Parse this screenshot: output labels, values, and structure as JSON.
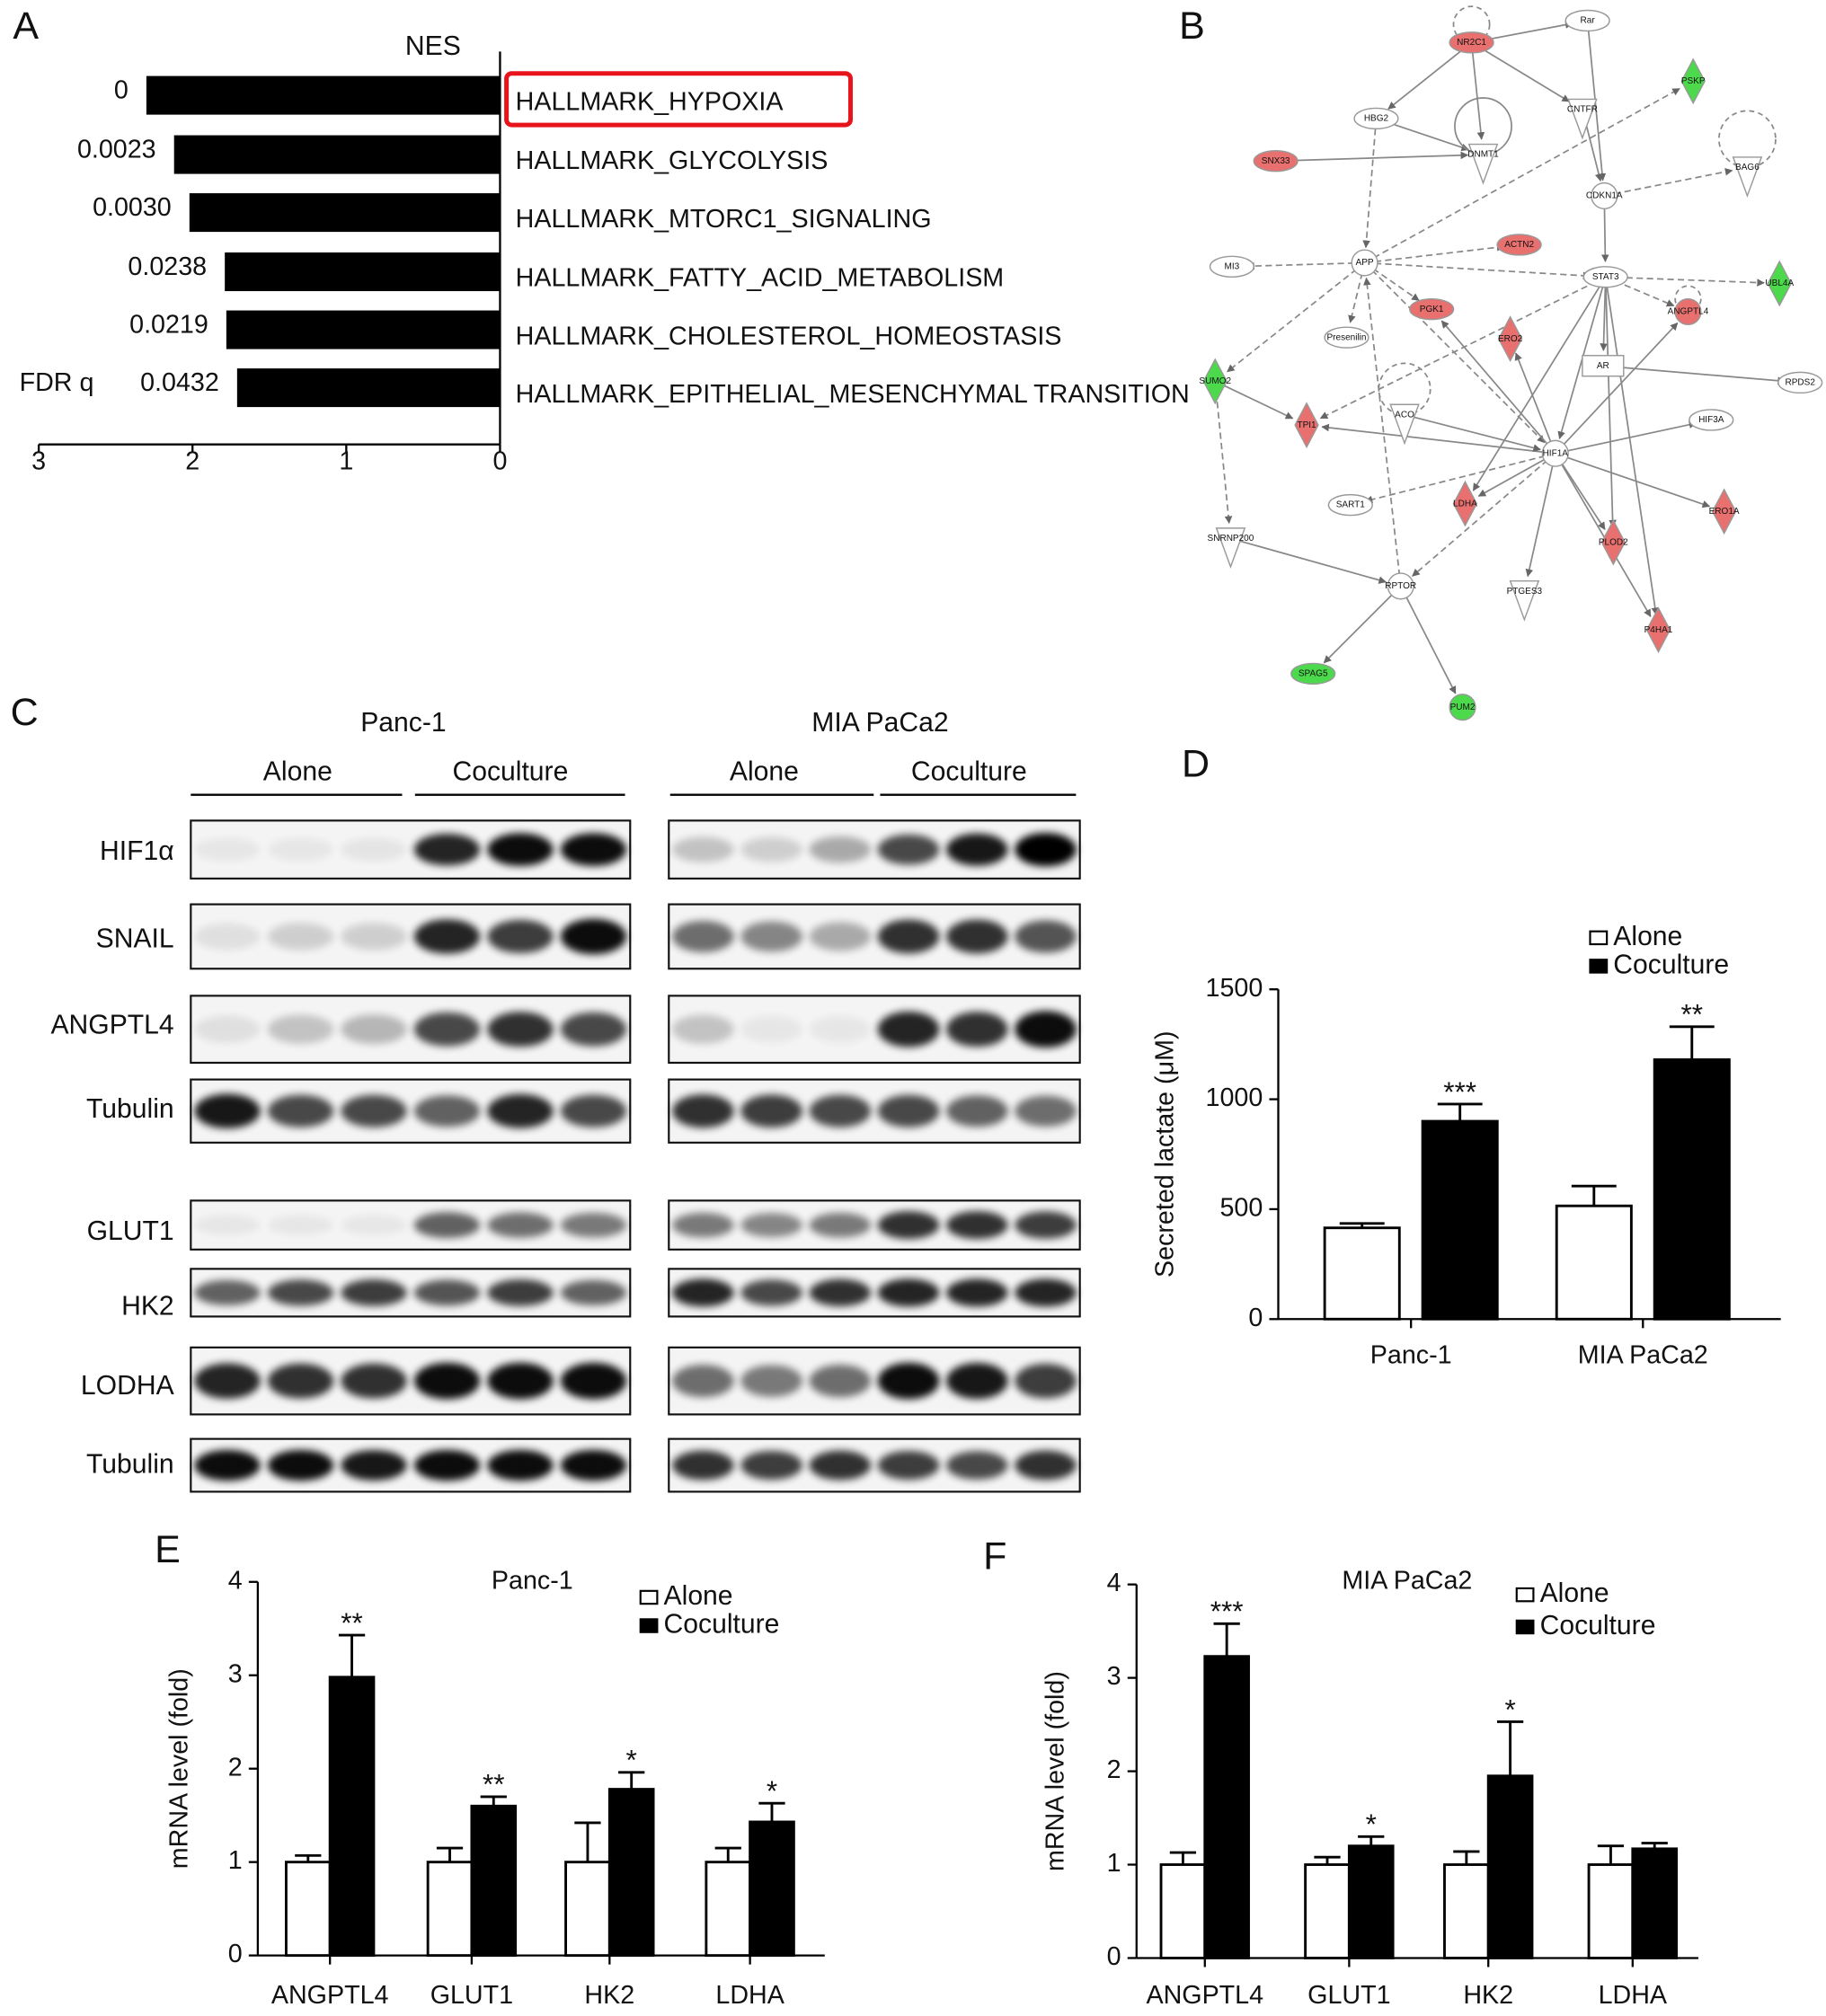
{
  "chart_data": [
    {
      "panel": "A",
      "type": "hbar",
      "xlabel": "NES",
      "categories": [
        "HALLMARK_HYPOXIA",
        "HALLMARK_GLYCOLYSIS",
        "HALLMARK_MTORC1_SIGNALING",
        "HALLMARK_FATTY_ACID_METABOLISM",
        "HALLMARK_CHOLESTEROL_HOMEOSTASIS",
        "HALLMARK_EPITHELIAL_MESENCHYMAL TRANSITION"
      ],
      "values": [
        2.3,
        2.12,
        2.02,
        1.79,
        1.78,
        1.71
      ],
      "color": "#000000",
      "xlim": [
        3,
        0
      ],
      "xticks": [
        3,
        2,
        1,
        0
      ],
      "fdr_title": "FDR q",
      "fdr_values": [
        "0",
        "0.0023",
        "0.0030",
        "0.0238",
        "0.0219",
        "0.0432"
      ],
      "highlight_color": "#e8141b"
    },
    {
      "panel": "D",
      "type": "grouped_bar",
      "categories": [
        "Panc-1",
        "MIA PaCa2"
      ],
      "series": [
        {
          "name": "Alone",
          "color": "#ffffff",
          "values": [
            415,
            515
          ],
          "errors": [
            20,
            90
          ]
        },
        {
          "name": "Coculture",
          "color": "#000000",
          "values": [
            900,
            1180
          ],
          "errors": [
            78,
            150
          ],
          "significance": [
            "***",
            "**"
          ]
        }
      ],
      "ylabel": "Secreted lactate (μM)",
      "ylim": [
        0,
        1500
      ],
      "yticks": [
        0,
        500,
        1000,
        1500
      ]
    },
    {
      "panel": "E",
      "type": "grouped_bar",
      "title": "Panc-1",
      "categories": [
        "ANGPTL4",
        "GLUT1",
        "HK2",
        "LDHA"
      ],
      "series": [
        {
          "name": "Alone",
          "color": "#ffffff",
          "values": [
            1,
            1,
            1,
            1
          ],
          "errors": [
            0.07,
            0.15,
            0.42,
            0.15
          ]
        },
        {
          "name": "Coculture",
          "color": "#000000",
          "values": [
            2.98,
            1.6,
            1.78,
            1.43
          ],
          "errors": [
            0.45,
            0.1,
            0.18,
            0.2
          ],
          "significance": [
            "**",
            "**",
            "*",
            "*"
          ]
        }
      ],
      "ylabel": "mRNA level (fold)",
      "ylim": [
        0,
        4
      ],
      "yticks": [
        0,
        1,
        2,
        3,
        4
      ]
    },
    {
      "panel": "F",
      "type": "grouped_bar",
      "title": "MIA PaCa2",
      "categories": [
        "ANGPTL4",
        "GLUT1",
        "HK2",
        "LDHA"
      ],
      "series": [
        {
          "name": "Alone",
          "color": "#ffffff",
          "values": [
            1,
            1,
            1,
            1
          ],
          "errors": [
            0.13,
            0.08,
            0.14,
            0.2
          ]
        },
        {
          "name": "Coculture",
          "color": "#000000",
          "values": [
            3.23,
            1.2,
            1.95,
            1.17
          ],
          "errors": [
            0.35,
            0.1,
            0.58,
            0.06
          ],
          "significance": [
            "***",
            "*",
            "*",
            null
          ]
        }
      ],
      "ylabel": "mRNA level (fold)",
      "ylim": [
        0,
        4
      ],
      "yticks": [
        0,
        1,
        2,
        3,
        4
      ]
    }
  ],
  "network": {
    "panel": "B",
    "nodes": [
      {
        "label": "NR2C1",
        "color": "#e8706f",
        "shape": "ellipse"
      },
      {
        "label": "Rar",
        "color": "#ffffff",
        "shape": "ellipse"
      },
      {
        "label": "PSKP",
        "color": "#4cd94c",
        "shape": "diamond"
      },
      {
        "label": "HBG2",
        "color": "#ffffff",
        "shape": "ellipse"
      },
      {
        "label": "CNTFR",
        "color": "#ffffff",
        "shape": "triangle"
      },
      {
        "label": "DNMT1",
        "color": "#ffffff",
        "shape": "triangle"
      },
      {
        "label": "SNX33",
        "color": "#e8706f",
        "shape": "ellipse"
      },
      {
        "label": "CDKN1A",
        "color": "#ffffff",
        "shape": "circle"
      },
      {
        "label": "BAG6",
        "color": "#ffffff",
        "shape": "triangle"
      },
      {
        "label": "APP",
        "color": "#ffffff",
        "shape": "circle"
      },
      {
        "label": "ACTN2",
        "color": "#e8706f",
        "shape": "ellipse"
      },
      {
        "label": "MI3",
        "color": "#ffffff",
        "shape": "ellipse"
      },
      {
        "label": "STAT3",
        "color": "#ffffff",
        "shape": "ellipse"
      },
      {
        "label": "UBL4A",
        "color": "#4cd94c",
        "shape": "diamond"
      },
      {
        "label": "PGK1",
        "color": "#e8706f",
        "shape": "ellipse"
      },
      {
        "label": "ANGPTL4",
        "color": "#e8706f",
        "shape": "circle"
      },
      {
        "label": "Presenilin",
        "color": "#ffffff",
        "shape": "ellipse"
      },
      {
        "label": "ERO2",
        "color": "#e8706f",
        "shape": "diamond"
      },
      {
        "label": "AR",
        "color": "#ffffff",
        "shape": "rect"
      },
      {
        "label": "SUMO2",
        "color": "#4cd94c",
        "shape": "diamond"
      },
      {
        "label": "RPDS2",
        "color": "#ffffff",
        "shape": "ellipse"
      },
      {
        "label": "TPI1",
        "color": "#e8706f",
        "shape": "diamond"
      },
      {
        "label": "ACO",
        "color": "#ffffff",
        "shape": "triangle"
      },
      {
        "label": "HIF3A",
        "color": "#ffffff",
        "shape": "ellipse"
      },
      {
        "label": "HIF1A",
        "color": "#ffffff",
        "shape": "circle"
      },
      {
        "label": "SART1",
        "color": "#ffffff",
        "shape": "ellipse"
      },
      {
        "label": "LDHA",
        "color": "#e8706f",
        "shape": "diamond"
      },
      {
        "label": "ERO1A",
        "color": "#e8706f",
        "shape": "diamond"
      },
      {
        "label": "SNRNP200",
        "color": "#ffffff",
        "shape": "triangle"
      },
      {
        "label": "PLOD2",
        "color": "#e8706f",
        "shape": "diamond"
      },
      {
        "label": "RPTOR",
        "color": "#ffffff",
        "shape": "circle"
      },
      {
        "label": "PTGES3",
        "color": "#ffffff",
        "shape": "triangle"
      },
      {
        "label": "P4HA1",
        "color": "#e8706f",
        "shape": "diamond"
      },
      {
        "label": "SPAG5",
        "color": "#4cd94c",
        "shape": "ellipse"
      },
      {
        "label": "PUM2",
        "color": "#4cd94c",
        "shape": "circle"
      }
    ]
  },
  "western_blot": {
    "panel": "C",
    "cell_lines": [
      "Panc-1",
      "MIA PaCa2"
    ],
    "conditions": [
      "Alone",
      "Coculture"
    ],
    "proteins": [
      "HIF1α",
      "SNAIL",
      "ANGPTL4",
      "Tubulin",
      "GLUT1",
      "HK2",
      "LODHA",
      "Tubulin"
    ]
  }
}
